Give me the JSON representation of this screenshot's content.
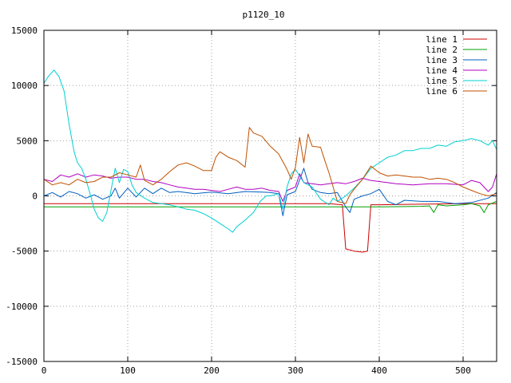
{
  "chart_data": {
    "type": "line",
    "title": "p1120_10",
    "xlim": [
      0,
      540
    ],
    "ylim": [
      -15000,
      15000
    ],
    "xticks": [
      0,
      100,
      200,
      300,
      400,
      500
    ],
    "yticks": [
      -15000,
      -10000,
      -5000,
      0,
      5000,
      10000,
      15000
    ],
    "grid": true,
    "legend_position": "top-right",
    "series": [
      {
        "name": "line 1",
        "color": "#cc0000",
        "points": [
          [
            0,
            -700
          ],
          [
            100,
            -700
          ],
          [
            200,
            -700
          ],
          [
            300,
            -700
          ],
          [
            340,
            -700
          ],
          [
            356,
            -800
          ],
          [
            360,
            -4800
          ],
          [
            370,
            -5000
          ],
          [
            380,
            -5100
          ],
          [
            386,
            -5000
          ],
          [
            390,
            -800
          ],
          [
            400,
            -800
          ],
          [
            450,
            -750
          ],
          [
            500,
            -700
          ],
          [
            540,
            -700
          ]
        ]
      },
      {
        "name": "line 2",
        "color": "#00a000",
        "points": [
          [
            0,
            -1000
          ],
          [
            100,
            -1000
          ],
          [
            200,
            -1000
          ],
          [
            300,
            -1000
          ],
          [
            400,
            -1000
          ],
          [
            450,
            -950
          ],
          [
            460,
            -900
          ],
          [
            465,
            -1500
          ],
          [
            470,
            -800
          ],
          [
            480,
            -900
          ],
          [
            500,
            -800
          ],
          [
            510,
            -700
          ],
          [
            520,
            -900
          ],
          [
            525,
            -1500
          ],
          [
            530,
            -800
          ],
          [
            540,
            -500
          ]
        ]
      },
      {
        "name": "line 3",
        "color": "#0060c0",
        "points": [
          [
            0,
            0
          ],
          [
            10,
            300
          ],
          [
            20,
            -100
          ],
          [
            30,
            400
          ],
          [
            40,
            200
          ],
          [
            50,
            -200
          ],
          [
            60,
            100
          ],
          [
            70,
            -300
          ],
          [
            80,
            0
          ],
          [
            85,
            700
          ],
          [
            90,
            -200
          ],
          [
            100,
            700
          ],
          [
            110,
            -100
          ],
          [
            120,
            700
          ],
          [
            130,
            200
          ],
          [
            140,
            700
          ],
          [
            150,
            300
          ],
          [
            160,
            400
          ],
          [
            180,
            200
          ],
          [
            200,
            350
          ],
          [
            220,
            200
          ],
          [
            240,
            400
          ],
          [
            260,
            350
          ],
          [
            270,
            300
          ],
          [
            280,
            200
          ],
          [
            285,
            -1800
          ],
          [
            290,
            100
          ],
          [
            300,
            400
          ],
          [
            310,
            2500
          ],
          [
            315,
            1200
          ],
          [
            320,
            600
          ],
          [
            330,
            300
          ],
          [
            340,
            200
          ],
          [
            350,
            300
          ],
          [
            360,
            -1000
          ],
          [
            365,
            -1500
          ],
          [
            370,
            -300
          ],
          [
            380,
            0
          ],
          [
            390,
            200
          ],
          [
            400,
            600
          ],
          [
            410,
            -500
          ],
          [
            420,
            -800
          ],
          [
            430,
            -400
          ],
          [
            450,
            -500
          ],
          [
            470,
            -500
          ],
          [
            490,
            -700
          ],
          [
            510,
            -600
          ],
          [
            530,
            -200
          ],
          [
            540,
            300
          ]
        ]
      },
      {
        "name": "line 4",
        "color": "#b000c0",
        "points": [
          [
            0,
            1500
          ],
          [
            10,
            1300
          ],
          [
            20,
            1900
          ],
          [
            30,
            1700
          ],
          [
            40,
            2000
          ],
          [
            50,
            1700
          ],
          [
            60,
            1900
          ],
          [
            70,
            1800
          ],
          [
            80,
            1600
          ],
          [
            90,
            1700
          ],
          [
            100,
            1700
          ],
          [
            110,
            1500
          ],
          [
            120,
            1500
          ],
          [
            130,
            1300
          ],
          [
            140,
            1200
          ],
          [
            150,
            1000
          ],
          [
            160,
            800
          ],
          [
            170,
            700
          ],
          [
            180,
            600
          ],
          [
            190,
            600
          ],
          [
            200,
            500
          ],
          [
            210,
            400
          ],
          [
            220,
            600
          ],
          [
            230,
            800
          ],
          [
            240,
            600
          ],
          [
            250,
            600
          ],
          [
            260,
            700
          ],
          [
            270,
            500
          ],
          [
            280,
            400
          ],
          [
            285,
            -500
          ],
          [
            290,
            500
          ],
          [
            300,
            800
          ],
          [
            305,
            2000
          ],
          [
            310,
            1200
          ],
          [
            320,
            1100
          ],
          [
            330,
            1000
          ],
          [
            340,
            1100
          ],
          [
            350,
            1200
          ],
          [
            360,
            1100
          ],
          [
            370,
            1300
          ],
          [
            380,
            1600
          ],
          [
            390,
            1400
          ],
          [
            400,
            1300
          ],
          [
            420,
            1100
          ],
          [
            440,
            1000
          ],
          [
            460,
            1100
          ],
          [
            480,
            1100
          ],
          [
            500,
            1000
          ],
          [
            510,
            1400
          ],
          [
            520,
            1200
          ],
          [
            530,
            400
          ],
          [
            535,
            800
          ],
          [
            540,
            2000
          ]
        ]
      },
      {
        "name": "line 5",
        "color": "#00d0d0",
        "points": [
          [
            0,
            10200
          ],
          [
            5,
            10800
          ],
          [
            12,
            11400
          ],
          [
            18,
            10800
          ],
          [
            24,
            9500
          ],
          [
            30,
            6500
          ],
          [
            36,
            4000
          ],
          [
            40,
            3000
          ],
          [
            45,
            2500
          ],
          [
            50,
            1500
          ],
          [
            55,
            200
          ],
          [
            60,
            -1200
          ],
          [
            65,
            -2000
          ],
          [
            70,
            -2300
          ],
          [
            75,
            -1500
          ],
          [
            80,
            500
          ],
          [
            85,
            2500
          ],
          [
            90,
            1200
          ],
          [
            95,
            2400
          ],
          [
            100,
            2200
          ],
          [
            105,
            1000
          ],
          [
            110,
            300
          ],
          [
            120,
            -200
          ],
          [
            130,
            -600
          ],
          [
            140,
            -700
          ],
          [
            150,
            -800
          ],
          [
            160,
            -1000
          ],
          [
            170,
            -1200
          ],
          [
            180,
            -1300
          ],
          [
            190,
            -1600
          ],
          [
            200,
            -2000
          ],
          [
            210,
            -2500
          ],
          [
            220,
            -3000
          ],
          [
            225,
            -3300
          ],
          [
            230,
            -2800
          ],
          [
            240,
            -2200
          ],
          [
            250,
            -1500
          ],
          [
            258,
            -500
          ],
          [
            265,
            0
          ],
          [
            270,
            0
          ],
          [
            280,
            200
          ],
          [
            285,
            -1200
          ],
          [
            290,
            800
          ],
          [
            295,
            2000
          ],
          [
            300,
            2400
          ],
          [
            305,
            1800
          ],
          [
            310,
            1200
          ],
          [
            320,
            800
          ],
          [
            330,
            -300
          ],
          [
            340,
            -800
          ],
          [
            345,
            -200
          ],
          [
            350,
            -500
          ],
          [
            360,
            0
          ],
          [
            370,
            700
          ],
          [
            380,
            1500
          ],
          [
            390,
            2500
          ],
          [
            400,
            3000
          ],
          [
            410,
            3500
          ],
          [
            420,
            3700
          ],
          [
            430,
            4100
          ],
          [
            440,
            4100
          ],
          [
            450,
            4300
          ],
          [
            460,
            4300
          ],
          [
            470,
            4600
          ],
          [
            480,
            4500
          ],
          [
            490,
            4900
          ],
          [
            500,
            5000
          ],
          [
            510,
            5200
          ],
          [
            520,
            5000
          ],
          [
            530,
            4600
          ],
          [
            535,
            5000
          ],
          [
            540,
            4200
          ]
        ]
      },
      {
        "name": "line 6",
        "color": "#c05000",
        "points": [
          [
            0,
            1500
          ],
          [
            10,
            1000
          ],
          [
            20,
            1200
          ],
          [
            30,
            1000
          ],
          [
            40,
            1500
          ],
          [
            50,
            1200
          ],
          [
            60,
            1300
          ],
          [
            70,
            1700
          ],
          [
            80,
            1700
          ],
          [
            90,
            2100
          ],
          [
            100,
            1900
          ],
          [
            110,
            1700
          ],
          [
            115,
            2800
          ],
          [
            120,
            1400
          ],
          [
            130,
            1000
          ],
          [
            140,
            1500
          ],
          [
            150,
            2200
          ],
          [
            160,
            2800
          ],
          [
            170,
            3000
          ],
          [
            180,
            2700
          ],
          [
            190,
            2300
          ],
          [
            200,
            2300
          ],
          [
            205,
            3500
          ],
          [
            210,
            4000
          ],
          [
            220,
            3500
          ],
          [
            230,
            3200
          ],
          [
            240,
            2600
          ],
          [
            245,
            6200
          ],
          [
            250,
            5700
          ],
          [
            260,
            5400
          ],
          [
            270,
            4500
          ],
          [
            280,
            3800
          ],
          [
            290,
            2400
          ],
          [
            295,
            1500
          ],
          [
            300,
            2600
          ],
          [
            305,
            5300
          ],
          [
            310,
            3000
          ],
          [
            315,
            5600
          ],
          [
            320,
            4500
          ],
          [
            330,
            4400
          ],
          [
            335,
            3200
          ],
          [
            340,
            2100
          ],
          [
            350,
            -500
          ],
          [
            360,
            -700
          ],
          [
            365,
            100
          ],
          [
            370,
            600
          ],
          [
            380,
            1500
          ],
          [
            390,
            2700
          ],
          [
            400,
            2100
          ],
          [
            410,
            1800
          ],
          [
            420,
            1900
          ],
          [
            430,
            1800
          ],
          [
            440,
            1700
          ],
          [
            450,
            1700
          ],
          [
            460,
            1500
          ],
          [
            470,
            1600
          ],
          [
            480,
            1500
          ],
          [
            490,
            1200
          ],
          [
            500,
            800
          ],
          [
            510,
            500
          ],
          [
            520,
            200
          ],
          [
            530,
            0
          ],
          [
            540,
            200
          ]
        ]
      }
    ]
  }
}
